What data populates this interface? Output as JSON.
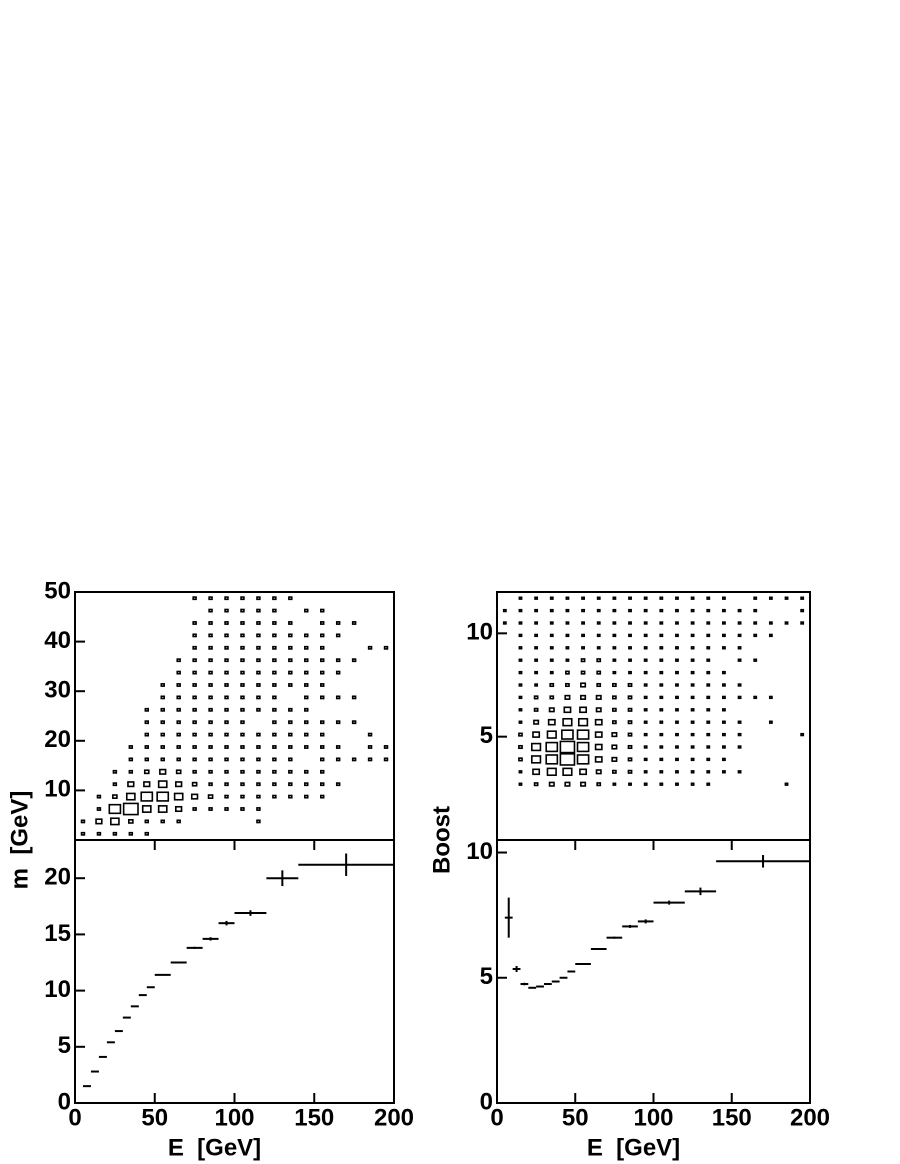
{
  "chart_data": [
    {
      "type": "box2d",
      "xlim": [
        0,
        200
      ],
      "ylim": [
        0,
        50
      ],
      "yticks": [
        10,
        20,
        30,
        40,
        50
      ],
      "xbins": [
        0,
        10,
        20,
        30,
        40,
        50,
        60,
        70,
        80,
        90,
        100,
        110,
        120,
        130,
        140,
        150,
        160,
        170,
        180,
        190,
        200
      ],
      "ybins": [
        0,
        2.5,
        5,
        7.5,
        10,
        12.5,
        15,
        17.5,
        20,
        22.5,
        25,
        27.5,
        30,
        32.5,
        35,
        37.5,
        40,
        42.5,
        45,
        47.5,
        50
      ],
      "z": [
        [
          1,
          1,
          0,
          0,
          0,
          0,
          0,
          0,
          0,
          0,
          0,
          0,
          0,
          0,
          0,
          0,
          0,
          0,
          0,
          0
        ],
        [
          1,
          4,
          1,
          1,
          0,
          0,
          0,
          0,
          0,
          0,
          0,
          0,
          0,
          0,
          0,
          0,
          0,
          0,
          0,
          0
        ],
        [
          1,
          8,
          15,
          2,
          1,
          1,
          0,
          0,
          0,
          0,
          0,
          0,
          0,
          0,
          0,
          0,
          0,
          0,
          0,
          0
        ],
        [
          1,
          2,
          25,
          8,
          4,
          1,
          1,
          1,
          0,
          0,
          0,
          0,
          0,
          0,
          0,
          0,
          0,
          0,
          0,
          0
        ],
        [
          1,
          1,
          8,
          15,
          4,
          2,
          1,
          1,
          1,
          1,
          1,
          0,
          0,
          0,
          0,
          0,
          0,
          0,
          0,
          0
        ],
        [
          0,
          1,
          8,
          15,
          8,
          4,
          1,
          1,
          1,
          1,
          1,
          1,
          1,
          0,
          0,
          0,
          0,
          0,
          0,
          0
        ],
        [
          0,
          1,
          4,
          8,
          4,
          2,
          1,
          1,
          1,
          1,
          1,
          1,
          1,
          1,
          1,
          0,
          0,
          0,
          0,
          0
        ],
        [
          0,
          0,
          1,
          4,
          2,
          1,
          1,
          1,
          1,
          1,
          1,
          1,
          1,
          1,
          1,
          1,
          1,
          1,
          0,
          1
        ],
        [
          0,
          0,
          1,
          2,
          1,
          1,
          1,
          1,
          1,
          1,
          1,
          1,
          1,
          1,
          1,
          1,
          1,
          1,
          1,
          1
        ],
        [
          0,
          0,
          1,
          1,
          1,
          1,
          1,
          1,
          1,
          1,
          1,
          1,
          1,
          1,
          1,
          1,
          1,
          1,
          1,
          1
        ],
        [
          0,
          0,
          1,
          1,
          1,
          1,
          1,
          1,
          1,
          1,
          1,
          1,
          1,
          1,
          1,
          1,
          1,
          1,
          1,
          1
        ],
        [
          0,
          1,
          1,
          1,
          1,
          1,
          1,
          1,
          1,
          0,
          1,
          1,
          1,
          1,
          1,
          1,
          1,
          1,
          1,
          1
        ],
        [
          0,
          0,
          0,
          1,
          1,
          1,
          1,
          1,
          1,
          1,
          1,
          1,
          1,
          1,
          1,
          1,
          1,
          1,
          1,
          1
        ],
        [
          0,
          0,
          0,
          1,
          1,
          1,
          1,
          1,
          1,
          1,
          1,
          0,
          1,
          1,
          1,
          1,
          1,
          1,
          0,
          1
        ],
        [
          0,
          0,
          0,
          1,
          1,
          1,
          0,
          1,
          1,
          1,
          1,
          1,
          1,
          1,
          1,
          1,
          1,
          0,
          1,
          0
        ],
        [
          0,
          0,
          0,
          1,
          1,
          1,
          1,
          1,
          1,
          1,
          0,
          1,
          1,
          1,
          1,
          1,
          1,
          1,
          1,
          0
        ],
        [
          0,
          0,
          0,
          0,
          1,
          0,
          1,
          1,
          0,
          1,
          0,
          1,
          0,
          1,
          1,
          0,
          1,
          1,
          0,
          0
        ],
        [
          0,
          0,
          0,
          0,
          0,
          0,
          1,
          0,
          0,
          1,
          0,
          1,
          0,
          0,
          1,
          0,
          0,
          1,
          0,
          0
        ],
        [
          0,
          0,
          0,
          0,
          0,
          0,
          1,
          1,
          1,
          0,
          0,
          0,
          0,
          0,
          0,
          1,
          0,
          0,
          0,
          0
        ],
        [
          0,
          0,
          0,
          0,
          0,
          0,
          1,
          1,
          0,
          0,
          0,
          0,
          0,
          0,
          0,
          1,
          0,
          0,
          0,
          0
        ]
      ]
    },
    {
      "type": "profile",
      "xlim": [
        0,
        200
      ],
      "ylim": [
        0,
        23.4
      ],
      "xticks": [
        0,
        50,
        100,
        150,
        200
      ],
      "yticks": [
        0,
        5,
        10,
        15,
        20
      ],
      "xlabel": "E  [GeV]",
      "ylabel": "m  [GeV]",
      "x": [
        7.5,
        12.5,
        17.5,
        22.5,
        27.5,
        32.5,
        37.5,
        42.5,
        47.5,
        55,
        65,
        75,
        85,
        95,
        110,
        130,
        170
      ],
      "xerr": [
        2.5,
        2.5,
        2.5,
        2.5,
        2.5,
        2.5,
        2.5,
        2.5,
        2.5,
        5,
        5,
        5,
        5,
        5,
        10,
        10,
        30
      ],
      "values": [
        1.5,
        2.8,
        4.1,
        5.4,
        6.4,
        7.6,
        8.6,
        9.6,
        10.3,
        11.4,
        12.5,
        13.8,
        14.6,
        16.0,
        16.9,
        20.0,
        21.2
      ],
      "yerr": [
        0.05,
        0.05,
        0.05,
        0.05,
        0.05,
        0.05,
        0.05,
        0.05,
        0.05,
        0.05,
        0.05,
        0.1,
        0.15,
        0.2,
        0.25,
        0.7,
        1.0
      ]
    },
    {
      "type": "box2d",
      "xlim": [
        0,
        200
      ],
      "ylim": [
        0,
        12
      ],
      "yticks": [
        5,
        10
      ],
      "xbins": [
        0,
        10,
        20,
        30,
        40,
        50,
        60,
        70,
        80,
        90,
        100,
        110,
        120,
        130,
        140,
        150,
        160,
        170,
        180,
        190,
        200
      ],
      "ybins": [
        0,
        0.6,
        1.2,
        1.8,
        2.4,
        3,
        3.6,
        4.2,
        4.8,
        5.4,
        6,
        6.6,
        7.2,
        7.8,
        8.4,
        9,
        9.6,
        10.2,
        10.8,
        11.4,
        12
      ],
      "z": [
        [
          0,
          0,
          0,
          0,
          0,
          0,
          0,
          0,
          0,
          0,
          0,
          0,
          0,
          0,
          0,
          0,
          0,
          1,
          1,
          0
        ],
        [
          0,
          0,
          0,
          0,
          1,
          1,
          2,
          2,
          2,
          1,
          1,
          1,
          1,
          1,
          1,
          1,
          1,
          1,
          1,
          1
        ],
        [
          0,
          0,
          0,
          0,
          2,
          8,
          15,
          15,
          8,
          4,
          2,
          2,
          1,
          1,
          1,
          1,
          1,
          1,
          1,
          1
        ],
        [
          0,
          0,
          0,
          0,
          4,
          15,
          25,
          25,
          15,
          8,
          4,
          2,
          2,
          1,
          1,
          1,
          1,
          1,
          1,
          1
        ],
        [
          0,
          0,
          0,
          0,
          4,
          15,
          40,
          40,
          25,
          15,
          8,
          4,
          2,
          2,
          1,
          1,
          1,
          1,
          1,
          1
        ],
        [
          0,
          0,
          0,
          0,
          4,
          8,
          25,
          25,
          25,
          15,
          8,
          4,
          4,
          2,
          2,
          1,
          1,
          1,
          1,
          1
        ],
        [
          0,
          0,
          0,
          0,
          2,
          4,
          8,
          8,
          8,
          8,
          4,
          4,
          2,
          2,
          2,
          1,
          1,
          1,
          1,
          1
        ],
        [
          0,
          0,
          0,
          0,
          1,
          2,
          4,
          4,
          4,
          2,
          2,
          2,
          2,
          1,
          1,
          1,
          1,
          1,
          1,
          1
        ],
        [
          0,
          0,
          0,
          0,
          1,
          2,
          2,
          2,
          2,
          2,
          2,
          2,
          2,
          1,
          1,
          1,
          1,
          1,
          1,
          1
        ],
        [
          0,
          0,
          0,
          0,
          1,
          1,
          1,
          1,
          1,
          1,
          1,
          1,
          1,
          1,
          1,
          1,
          1,
          1,
          1,
          1
        ],
        [
          0,
          0,
          0,
          0,
          1,
          1,
          1,
          1,
          1,
          1,
          1,
          1,
          1,
          1,
          1,
          1,
          1,
          1,
          1,
          1
        ],
        [
          0,
          0,
          0,
          0,
          1,
          1,
          1,
          1,
          1,
          1,
          1,
          1,
          1,
          1,
          1,
          1,
          1,
          1,
          1,
          1
        ],
        [
          0,
          0,
          0,
          0,
          1,
          1,
          1,
          1,
          1,
          1,
          1,
          1,
          1,
          1,
          1,
          1,
          1,
          1,
          1,
          1
        ],
        [
          0,
          0,
          0,
          0,
          1,
          1,
          1,
          1,
          1,
          1,
          1,
          1,
          1,
          1,
          1,
          1,
          1,
          1,
          1,
          1
        ],
        [
          0,
          0,
          0,
          0,
          0,
          1,
          1,
          1,
          1,
          1,
          1,
          1,
          1,
          1,
          0,
          1,
          1,
          1,
          1,
          1
        ],
        [
          0,
          0,
          0,
          0,
          0,
          1,
          0,
          1,
          1,
          1,
          0,
          1,
          1,
          0,
          1,
          1,
          1,
          1,
          1,
          0
        ],
        [
          0,
          0,
          0,
          0,
          0,
          0,
          0,
          0,
          0,
          0,
          0,
          1,
          0,
          0,
          1,
          0,
          1,
          1,
          1,
          1
        ],
        [
          0,
          0,
          0,
          0,
          0,
          0,
          0,
          0,
          0,
          1,
          0,
          1,
          0,
          0,
          0,
          0,
          1,
          1,
          0,
          1
        ],
        [
          0,
          0,
          0,
          0,
          1,
          0,
          0,
          0,
          0,
          0,
          0,
          0,
          0,
          0,
          0,
          0,
          0,
          1,
          0,
          1
        ],
        [
          0,
          0,
          0,
          0,
          0,
          0,
          0,
          0,
          1,
          0,
          0,
          0,
          0,
          0,
          0,
          0,
          0,
          1,
          1,
          1
        ]
      ]
    },
    {
      "type": "profile",
      "xlim": [
        0,
        200
      ],
      "ylim": [
        0,
        10.5
      ],
      "xticks": [
        0,
        50,
        100,
        150,
        200
      ],
      "yticks": [
        0,
        5,
        10
      ],
      "xlabel": "E  [GeV]",
      "ylabel": "Boost",
      "x": [
        7.5,
        12.5,
        17.5,
        22.5,
        27.5,
        32.5,
        37.5,
        42.5,
        47.5,
        55,
        65,
        75,
        85,
        95,
        110,
        130,
        170
      ],
      "xerr": [
        2.5,
        2.5,
        2.5,
        2.5,
        2.5,
        2.5,
        2.5,
        2.5,
        2.5,
        5,
        5,
        5,
        5,
        5,
        10,
        10,
        30
      ],
      "values": [
        7.4,
        5.35,
        4.75,
        4.6,
        4.65,
        4.75,
        4.85,
        5.0,
        5.25,
        5.55,
        6.15,
        6.6,
        7.05,
        7.25,
        8.0,
        8.45,
        9.65
      ],
      "yerr": [
        0.8,
        0.12,
        0.05,
        0.03,
        0.03,
        0.03,
        0.03,
        0.03,
        0.03,
        0.03,
        0.03,
        0.04,
        0.06,
        0.08,
        0.08,
        0.15,
        0.25
      ]
    }
  ]
}
